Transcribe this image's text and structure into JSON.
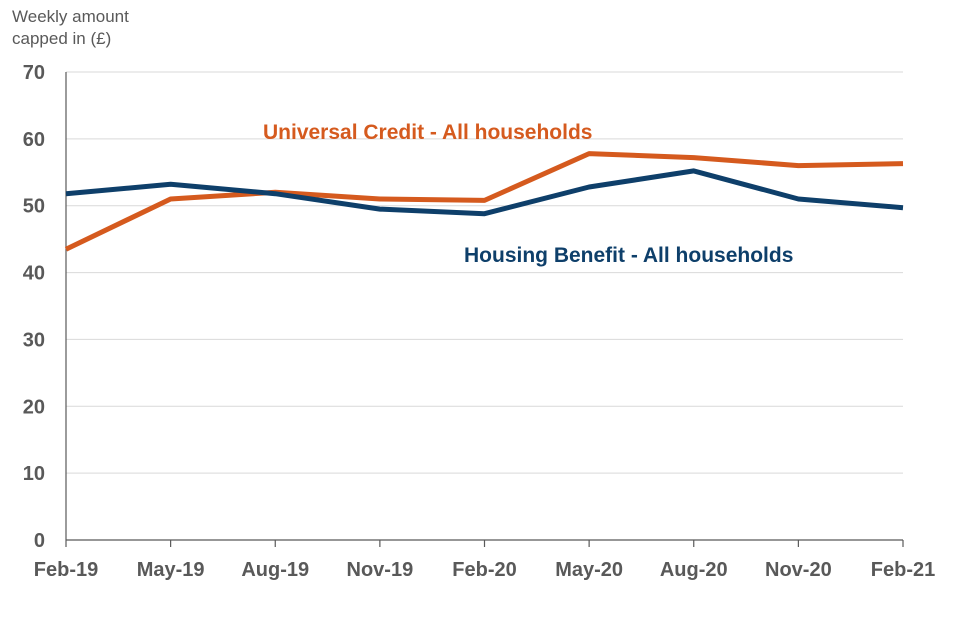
{
  "chart_data": {
    "type": "line",
    "title": "",
    "ylabel": "Weekly amount\ncapped in (£)",
    "xlabel": "",
    "categories": [
      "Feb-19",
      "May-19",
      "Aug-19",
      "Nov-19",
      "Feb-20",
      "May-20",
      "Aug-20",
      "Nov-20",
      "Feb-21"
    ],
    "ylim": [
      0,
      70
    ],
    "yticks": [
      0,
      10,
      20,
      30,
      40,
      50,
      60,
      70
    ],
    "grid": true,
    "series": [
      {
        "name": "Universal Credit - All households",
        "color": "#D55A1E",
        "values": [
          43.5,
          51,
          52,
          51,
          50.8,
          57.8,
          57.2,
          56,
          56.3
        ]
      },
      {
        "name": "Housing Benefit - All households",
        "color": "#0E3F6A",
        "values": [
          51.8,
          53.2,
          51.8,
          49.5,
          48.8,
          52.8,
          55.2,
          51,
          49.7
        ]
      }
    ]
  }
}
